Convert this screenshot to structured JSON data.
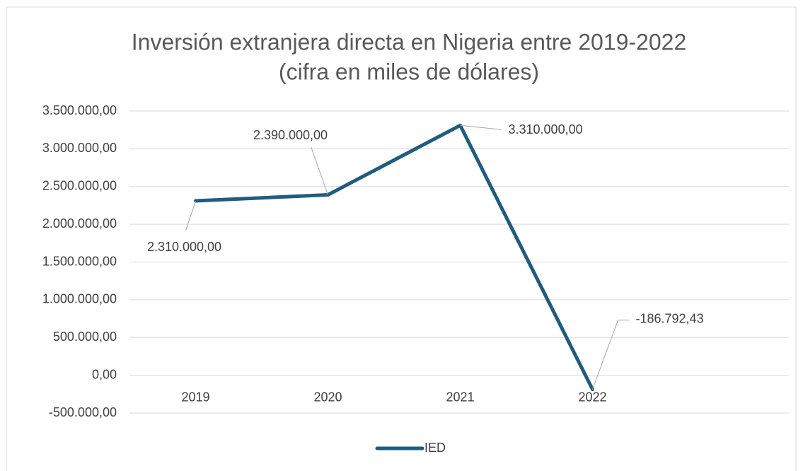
{
  "chart_data": {
    "type": "line",
    "title": "Inversión extranjera directa en Nigeria entre 2019-2022",
    "subtitle": "(cifra en miles de dólares)",
    "categories": [
      "2019",
      "2020",
      "2021",
      "2022"
    ],
    "series": [
      {
        "name": "IED",
        "color": "#1f5c80",
        "values": [
          2310000,
          2390000,
          3310000,
          -186792.43
        ],
        "value_labels": [
          "2.310.000,00",
          "2.390.000,00",
          "3.310.000,00",
          "-186.792,43"
        ]
      }
    ],
    "ylim": [
      -500000,
      3500000
    ],
    "yticks": [
      {
        "value": -500000,
        "label": "-500.000,00"
      },
      {
        "value": 0,
        "label": "0,00"
      },
      {
        "value": 500000,
        "label": "500.000,00"
      },
      {
        "value": 1000000,
        "label": "1.000.000,00"
      },
      {
        "value": 1500000,
        "label": "1.500.000,00"
      },
      {
        "value": 2000000,
        "label": "2.000.000,00"
      },
      {
        "value": 2500000,
        "label": "2.500.000,00"
      },
      {
        "value": 3000000,
        "label": "3.000.000,00"
      },
      {
        "value": 3500000,
        "label": "3.500.000,00"
      }
    ],
    "grid": true,
    "legend": "bottom"
  }
}
